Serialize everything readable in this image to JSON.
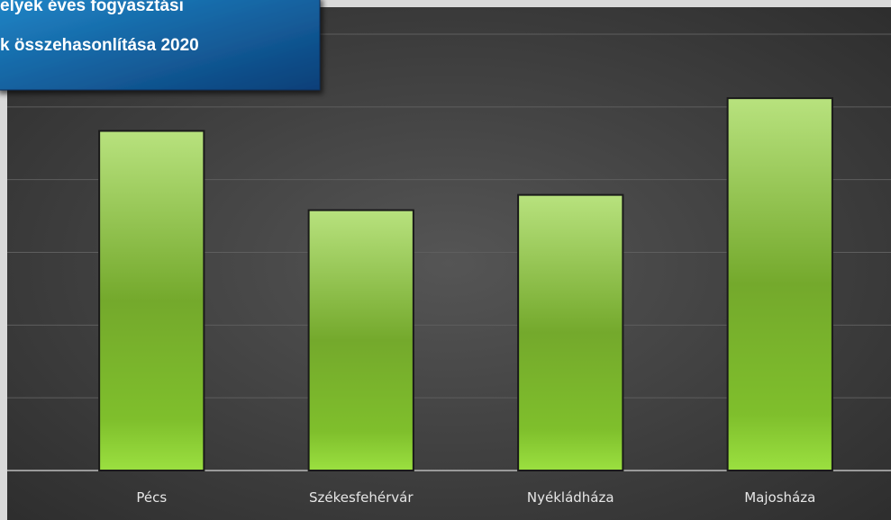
{
  "chart_data": {
    "type": "bar",
    "title_lines": [
      "elyek éves fogyasztási",
      "k összehasonlítása 2020"
    ],
    "categories": [
      "Pécs",
      "Székesfehérvár",
      "Nyékládháza",
      "Majosháza"
    ],
    "values": [
      4.67,
      3.58,
      3.79,
      5.12
    ],
    "color": "#7db532",
    "ylim": [
      0,
      6
    ],
    "yticks": [
      0,
      1,
      2,
      3,
      4,
      5,
      6
    ],
    "grid": true
  }
}
